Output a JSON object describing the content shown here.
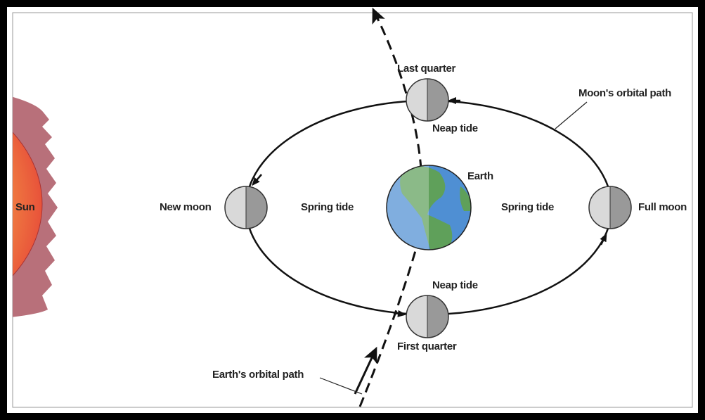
{
  "sun": {
    "label": "Sun"
  },
  "earth": {
    "label": "Earth"
  },
  "moons": [
    {
      "label": "New moon"
    },
    {
      "label": "Full moon"
    },
    {
      "label": "Last quarter"
    },
    {
      "label": "First quarter"
    }
  ],
  "tides": [
    "Spring tide",
    "Spring tide",
    "Neap tide",
    "Neap tide"
  ],
  "paths": {
    "moon": "Moon's orbital path",
    "earth": "Earth's orbital path"
  }
}
